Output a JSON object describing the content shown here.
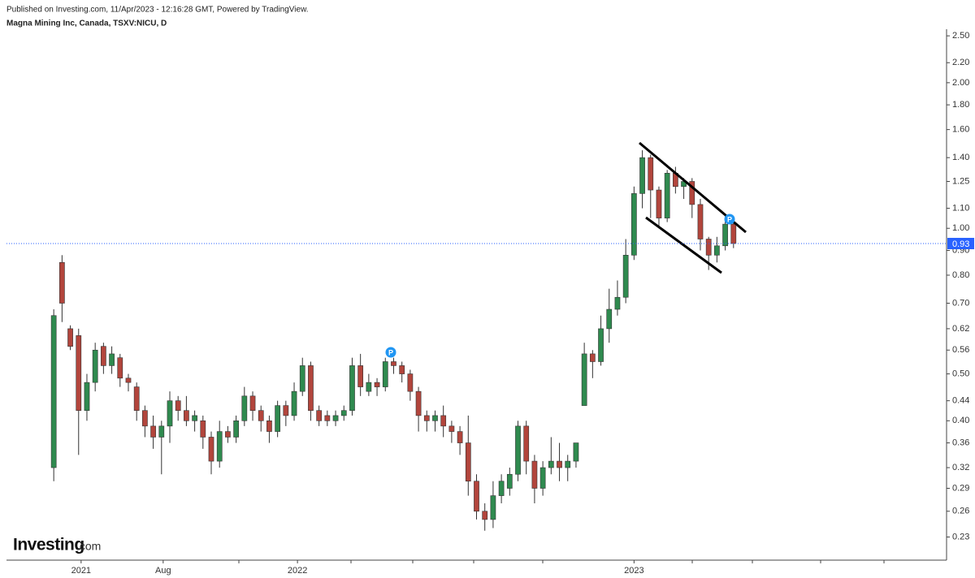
{
  "header": {
    "published": "Published on Investing.com, 11/Apr/2023 - 12:16:28 GMT, Powered by TradingView.",
    "symbol": "Magna Mining Inc, Canada, TSXV:NICU, D"
  },
  "logo": {
    "brand": "Investing",
    "suffix": ".com"
  },
  "chart_data": {
    "type": "candlestick",
    "log_scale": true,
    "categories": [
      null,
      null,
      null,
      null,
      null,
      null,
      null,
      null,
      null,
      null,
      null,
      null,
      null,
      null,
      null,
      null,
      null,
      null,
      null,
      null,
      null,
      null,
      null,
      null,
      null,
      null,
      null,
      null,
      null,
      null,
      null,
      null,
      null,
      null,
      null,
      null,
      null,
      null,
      null,
      null,
      null,
      null,
      null,
      null,
      null,
      null,
      null,
      null,
      null,
      null,
      null,
      null,
      null,
      null,
      null,
      null,
      null,
      null,
      null,
      null,
      null,
      null,
      null,
      null,
      null,
      null,
      null,
      null,
      null,
      null,
      null,
      null,
      null,
      null,
      null,
      null,
      null,
      null,
      null,
      null,
      null,
      null,
      null
    ],
    "open": [
      0.32,
      0.85,
      0.62,
      0.6,
      0.42,
      0.48,
      0.57,
      0.52,
      0.54,
      0.49,
      0.47,
      0.42,
      0.39,
      0.37,
      0.39,
      0.44,
      0.42,
      0.4,
      0.4,
      0.37,
      0.33,
      0.38,
      0.37,
      0.4,
      0.45,
      0.42,
      0.4,
      0.38,
      0.43,
      0.41,
      0.46,
      0.52,
      0.42,
      0.41,
      0.4,
      0.41,
      0.42,
      0.52,
      0.46,
      0.48,
      0.47,
      0.53,
      0.52,
      0.5,
      0.46,
      0.41,
      0.4,
      0.41,
      0.39,
      0.38,
      0.36,
      0.3,
      0.26,
      0.25,
      0.28,
      0.29,
      0.31,
      0.39,
      0.33,
      0.29,
      0.32,
      0.33,
      0.32,
      0.33,
      0.43,
      0.55,
      0.53,
      0.62,
      0.68,
      0.72,
      0.88,
      1.18,
      1.4,
      1.2,
      1.05,
      1.3,
      1.22,
      1.25,
      1.12,
      0.95,
      0.88,
      0.92,
      1.02
    ],
    "high": [
      0.68,
      0.88,
      0.63,
      0.62,
      0.5,
      0.58,
      0.58,
      0.57,
      0.55,
      0.5,
      0.48,
      0.43,
      0.41,
      0.4,
      0.46,
      0.45,
      0.45,
      0.42,
      0.41,
      0.38,
      0.4,
      0.39,
      0.41,
      0.47,
      0.46,
      0.43,
      0.41,
      0.44,
      0.44,
      0.48,
      0.54,
      0.53,
      0.43,
      0.42,
      0.42,
      0.43,
      0.54,
      0.55,
      0.5,
      0.49,
      0.54,
      0.54,
      0.53,
      0.51,
      0.47,
      0.42,
      0.42,
      0.43,
      0.4,
      0.39,
      0.41,
      0.31,
      0.27,
      0.3,
      0.31,
      0.32,
      0.4,
      0.4,
      0.34,
      0.33,
      0.37,
      0.36,
      0.34,
      0.36,
      0.58,
      0.56,
      0.66,
      0.75,
      0.78,
      0.95,
      1.22,
      1.45,
      1.42,
      1.22,
      1.32,
      1.34,
      1.27,
      1.27,
      1.15,
      0.96,
      0.96,
      1.06,
      1.03
    ],
    "low": [
      0.3,
      0.64,
      0.56,
      0.34,
      0.4,
      0.46,
      0.5,
      0.5,
      0.47,
      0.46,
      0.4,
      0.37,
      0.35,
      0.31,
      0.36,
      0.4,
      0.39,
      0.38,
      0.35,
      0.31,
      0.32,
      0.36,
      0.36,
      0.39,
      0.4,
      0.38,
      0.36,
      0.37,
      0.39,
      0.4,
      0.45,
      0.4,
      0.39,
      0.39,
      0.39,
      0.4,
      0.41,
      0.45,
      0.45,
      0.45,
      0.46,
      0.5,
      0.48,
      0.44,
      0.38,
      0.38,
      0.38,
      0.37,
      0.36,
      0.34,
      0.28,
      0.25,
      0.237,
      0.24,
      0.27,
      0.28,
      0.3,
      0.31,
      0.27,
      0.28,
      0.31,
      0.3,
      0.3,
      0.32,
      0.43,
      0.49,
      0.52,
      0.58,
      0.66,
      0.7,
      0.86,
      1.1,
      1.05,
      1.0,
      1.03,
      1.18,
      1.15,
      1.05,
      0.9,
      0.82,
      0.85,
      0.9,
      0.91
    ],
    "close": [
      0.66,
      0.7,
      0.57,
      0.42,
      0.48,
      0.56,
      0.52,
      0.55,
      0.49,
      0.48,
      0.42,
      0.39,
      0.37,
      0.39,
      0.44,
      0.42,
      0.4,
      0.41,
      0.37,
      0.33,
      0.38,
      0.37,
      0.4,
      0.45,
      0.42,
      0.4,
      0.38,
      0.43,
      0.41,
      0.46,
      0.52,
      0.42,
      0.4,
      0.4,
      0.41,
      0.42,
      0.52,
      0.47,
      0.48,
      0.47,
      0.53,
      0.52,
      0.5,
      0.46,
      0.41,
      0.4,
      0.41,
      0.39,
      0.38,
      0.36,
      0.3,
      0.26,
      0.25,
      0.28,
      0.3,
      0.31,
      0.39,
      0.33,
      0.29,
      0.32,
      0.33,
      0.32,
      0.33,
      0.36,
      0.55,
      0.53,
      0.62,
      0.68,
      0.72,
      0.88,
      1.18,
      1.4,
      1.2,
      1.05,
      1.3,
      1.22,
      1.25,
      1.12,
      0.95,
      0.88,
      0.92,
      1.02,
      0.93
    ],
    "up_color": "#2f8a4f",
    "down_color": "#b2453c",
    "xlim": [
      -5.7,
      107.7
    ],
    "xticks": [
      {
        "value": 3.3,
        "label": "2021"
      },
      {
        "value": 13.2,
        "label": "Aug"
      },
      {
        "value": 29.4,
        "label": "2022"
      },
      {
        "value": 70,
        "label": "2023"
      }
    ],
    "ylim": [
      0.206,
      2.58
    ],
    "yticks": [
      {
        "value": 2.5,
        "label": "2.50"
      },
      {
        "value": 2.2,
        "label": "2.20"
      },
      {
        "value": 2,
        "label": "2.00"
      },
      {
        "value": 1.8,
        "label": "1.80"
      },
      {
        "value": 1.6,
        "label": "1.60"
      },
      {
        "value": 1.4,
        "label": "1.40"
      },
      {
        "value": 1.25,
        "label": "1.25"
      },
      {
        "value": 1.1,
        "label": "1.10"
      },
      {
        "value": 1,
        "label": "1.00"
      },
      {
        "value": 0.9,
        "label": "0.90"
      },
      {
        "value": 0.8,
        "label": "0.80"
      },
      {
        "value": 0.7,
        "label": "0.70"
      },
      {
        "value": 0.62,
        "label": "0.62"
      },
      {
        "value": 0.56,
        "label": "0.56"
      },
      {
        "value": 0.5,
        "label": "0.50"
      },
      {
        "value": 0.44,
        "label": "0.44"
      },
      {
        "value": 0.4,
        "label": "0.40"
      },
      {
        "value": 0.36,
        "label": "0.36"
      },
      {
        "value": 0.32,
        "label": "0.32"
      },
      {
        "value": 0.29,
        "label": "0.29"
      },
      {
        "value": 0.26,
        "label": "0.26"
      },
      {
        "value": 0.23,
        "label": "0.23"
      }
    ],
    "last_price": {
      "value": 0.93,
      "label": "0.93"
    },
    "last_price_color": "#2962ff",
    "markers": [
      "P",
      "P"
    ]
  }
}
